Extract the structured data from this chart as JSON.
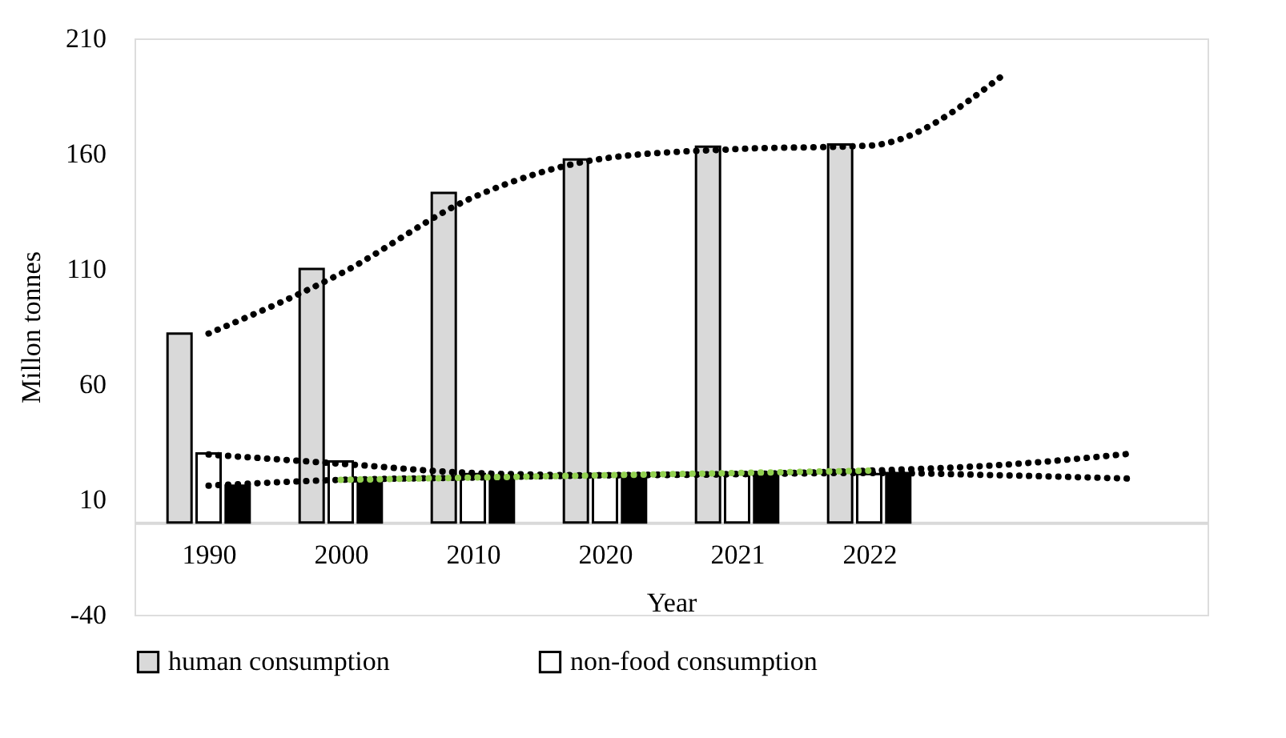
{
  "chart_data": {
    "type": "bar",
    "xlabel": "Year",
    "ylabel": "Millon tonnes",
    "categories": [
      "1990",
      "2000",
      "2010",
      "2020",
      "2021",
      "2022",
      null,
      null
    ],
    "ylim": [
      -40,
      210
    ],
    "yticks": [
      -40,
      10,
      60,
      110,
      160,
      210
    ],
    "grid": false,
    "legend": "bottom",
    "series": [
      {
        "name": "human consumption",
        "color": "#d9d9d9",
        "values": [
          82,
          110,
          143,
          157.5,
          163,
          164,
          null,
          null
        ]
      },
      {
        "name": "non-food consumption",
        "color": "#ffffff",
        "values": [
          30,
          26.5,
          21,
          21,
          21,
          21,
          null,
          null
        ]
      },
      {
        "color": "#000000",
        "values": [
          16,
          17.5,
          19.5,
          20.5,
          21,
          21.5,
          null,
          null
        ]
      },
      {
        "type": "line",
        "line_style": "dotted",
        "color": "#000000",
        "values": [
          82,
          108,
          141,
          158,
          162,
          163.5,
          193.5,
          null
        ]
      },
      {
        "type": "line",
        "line_style": "dotted",
        "color": "#000000",
        "values": [
          29.5,
          25.5,
          21.5,
          20.5,
          21,
          22.5,
          25,
          30
        ]
      },
      {
        "type": "line",
        "line_style": "dotted",
        "color": "#000000",
        "values": [
          16,
          18.5,
          19.5,
          20.5,
          21,
          21.5,
          20.5,
          19
        ]
      },
      {
        "type": "line",
        "line_style": "dotted",
        "color": "#92d050",
        "values": [
          null,
          18.5,
          19.5,
          20.5,
          21.5,
          22.5,
          null,
          null
        ]
      }
    ]
  }
}
